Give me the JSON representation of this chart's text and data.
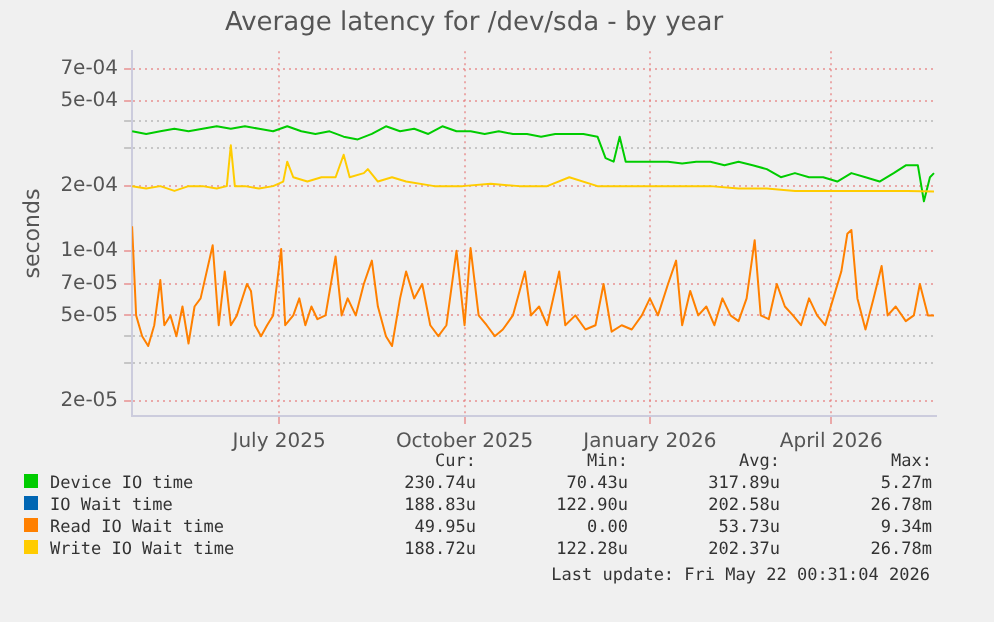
{
  "chart_data": {
    "type": "line",
    "title": "Average latency for /dev/sda - by year",
    "ylabel": "seconds",
    "log": "y",
    "grid": true,
    "legend": "bottom",
    "marker": "none",
    "line_style": "solid",
    "xlim": [
      "2025-04-19",
      "2026-05-23"
    ],
    "xticks": [
      {
        "value": "2025-07-01",
        "label": "July 2025"
      },
      {
        "value": "2025-10-01",
        "label": "October 2025"
      },
      {
        "value": "2026-01-01",
        "label": "January 2026"
      },
      {
        "value": "2026-04-01",
        "label": "April 2026"
      }
    ],
    "ylim": [
      1.7e-05,
      0.00085
    ],
    "yticks": [
      {
        "value": 2e-05,
        "label": "2e-05"
      },
      {
        "value": 3e-05,
        "label": null
      },
      {
        "value": 4e-05,
        "label": null
      },
      {
        "value": 5e-05,
        "label": "5e-05"
      },
      {
        "value": 7e-05,
        "label": "7e-05"
      },
      {
        "value": 0.0001,
        "label": "1e-04"
      },
      {
        "value": 0.0002,
        "label": "2e-04"
      },
      {
        "value": 0.0003,
        "label": null
      },
      {
        "value": 0.0004,
        "label": null
      },
      {
        "value": 0.0005,
        "label": "5e-04"
      },
      {
        "value": 0.0007,
        "label": "7e-04"
      }
    ],
    "annotations": [
      "Cur:",
      "Min:",
      "Avg:",
      "Max:",
      "230.74u",
      "70.43u",
      "317.89u",
      "5.27m",
      "188.83u",
      "122.90u",
      "202.58u",
      "26.78m",
      "49.95u",
      "0.00",
      "53.73u",
      "9.34m",
      "188.72u",
      "122.28u",
      "202.37u",
      "26.78m",
      "Last update: Fri May 22 00:31:04 2026"
    ],
    "series": [
      {
        "name": "Device IO time",
        "color": "#00cc00",
        "x": [
          "2025-04-19",
          "2025-04-26",
          "2025-05-03",
          "2025-05-10",
          "2025-05-17",
          "2025-05-24",
          "2025-05-31",
          "2025-06-07",
          "2025-06-14",
          "2025-06-21",
          "2025-06-28",
          "2025-07-05",
          "2025-07-12",
          "2025-07-19",
          "2025-07-26",
          "2025-08-02",
          "2025-08-09",
          "2025-08-16",
          "2025-08-23",
          "2025-08-30",
          "2025-09-06",
          "2025-09-13",
          "2025-09-20",
          "2025-09-27",
          "2025-10-04",
          "2025-10-11",
          "2025-10-18",
          "2025-10-25",
          "2025-11-01",
          "2025-11-08",
          "2025-11-15",
          "2025-11-22",
          "2025-11-29",
          "2025-12-06",
          "2025-12-10",
          "2025-12-14",
          "2025-12-17",
          "2025-12-20",
          "2025-12-27",
          "2026-01-03",
          "2026-01-10",
          "2026-01-17",
          "2026-01-24",
          "2026-01-31",
          "2026-02-07",
          "2026-02-14",
          "2026-02-21",
          "2026-02-28",
          "2026-03-07",
          "2026-03-14",
          "2026-03-21",
          "2026-03-28",
          "2026-04-04",
          "2026-04-11",
          "2026-04-18",
          "2026-04-25",
          "2026-05-02",
          "2026-05-08",
          "2026-05-14",
          "2026-05-17",
          "2026-05-20",
          "2026-05-22"
        ],
        "values": [
          0.00036,
          0.00035,
          0.00036,
          0.00037,
          0.00036,
          0.00037,
          0.00038,
          0.00037,
          0.00038,
          0.00037,
          0.00036,
          0.00038,
          0.00036,
          0.00035,
          0.00036,
          0.00034,
          0.00033,
          0.00035,
          0.00038,
          0.00036,
          0.00037,
          0.00035,
          0.00038,
          0.00036,
          0.00036,
          0.00035,
          0.00036,
          0.00035,
          0.00035,
          0.00034,
          0.00035,
          0.00035,
          0.00035,
          0.00034,
          0.00027,
          0.00026,
          0.00034,
          0.00026,
          0.00026,
          0.00026,
          0.00026,
          0.000255,
          0.00026,
          0.00026,
          0.00025,
          0.00026,
          0.00025,
          0.00024,
          0.00022,
          0.00023,
          0.00022,
          0.00022,
          0.00021,
          0.00023,
          0.00022,
          0.00021,
          0.00023,
          0.00025,
          0.00025,
          0.00017,
          0.00022,
          0.00023
        ]
      },
      {
        "name": "IO Wait time",
        "color": "#0066b3"
      },
      {
        "name": "Read IO Wait time",
        "color": "#ff8000",
        "x": [
          "2025-04-19",
          "2025-04-21",
          "2025-04-24",
          "2025-04-27",
          "2025-04-30",
          "2025-05-03",
          "2025-05-05",
          "2025-05-08",
          "2025-05-11",
          "2025-05-14",
          "2025-05-17",
          "2025-05-20",
          "2025-05-23",
          "2025-05-29",
          "2025-06-01",
          "2025-06-04",
          "2025-06-07",
          "2025-06-10",
          "2025-06-15",
          "2025-06-17",
          "2025-06-19",
          "2025-06-22",
          "2025-06-25",
          "2025-06-28",
          "2025-07-02",
          "2025-07-04",
          "2025-07-08",
          "2025-07-11",
          "2025-07-14",
          "2025-07-17",
          "2025-07-20",
          "2025-07-24",
          "2025-07-29",
          "2025-08-01",
          "2025-08-04",
          "2025-08-08",
          "2025-08-12",
          "2025-08-16",
          "2025-08-19",
          "2025-08-23",
          "2025-08-26",
          "2025-08-30",
          "2025-09-02",
          "2025-09-06",
          "2025-09-10",
          "2025-09-14",
          "2025-09-18",
          "2025-09-22",
          "2025-09-27",
          "2025-10-01",
          "2025-10-04",
          "2025-10-08",
          "2025-10-12",
          "2025-10-16",
          "2025-10-20",
          "2025-10-25",
          "2025-10-31",
          "2025-11-03",
          "2025-11-07",
          "2025-11-11",
          "2025-11-17",
          "2025-11-20",
          "2025-11-25",
          "2025-11-30",
          "2025-12-05",
          "2025-12-09",
          "2025-12-13",
          "2025-12-18",
          "2025-12-23",
          "2025-12-28",
          "2026-01-01",
          "2026-01-05",
          "2026-01-10",
          "2026-01-14",
          "2026-01-17",
          "2026-01-21",
          "2026-01-25",
          "2026-01-29",
          "2026-02-02",
          "2026-02-06",
          "2026-02-10",
          "2026-02-14",
          "2026-02-18",
          "2026-02-22",
          "2026-02-25",
          "2026-03-01",
          "2026-03-05",
          "2026-03-09",
          "2026-03-13",
          "2026-03-17",
          "2026-03-21",
          "2026-03-25",
          "2026-03-29",
          "2026-04-02",
          "2026-04-06",
          "2026-04-09",
          "2026-04-11",
          "2026-04-14",
          "2026-04-18",
          "2026-04-22",
          "2026-04-26",
          "2026-04-29",
          "2026-05-03",
          "2026-05-08",
          "2026-05-12",
          "2026-05-15",
          "2026-05-19",
          "2026-05-22"
        ],
        "values": [
          0.00013,
          5e-05,
          4e-05,
          3.6e-05,
          4.5e-05,
          7.3e-05,
          4.5e-05,
          5e-05,
          4e-05,
          5.5e-05,
          3.7e-05,
          5.5e-05,
          6e-05,
          0.000106,
          4.5e-05,
          8e-05,
          4.5e-05,
          5e-05,
          7e-05,
          6.5e-05,
          4.5e-05,
          4e-05,
          4.5e-05,
          5e-05,
          0.000102,
          4.5e-05,
          5e-05,
          6e-05,
          4.5e-05,
          5.5e-05,
          4.8e-05,
          5e-05,
          9.4e-05,
          5e-05,
          6e-05,
          5e-05,
          7e-05,
          9e-05,
          5.5e-05,
          4e-05,
          3.6e-05,
          6e-05,
          8e-05,
          6e-05,
          7e-05,
          4.5e-05,
          4e-05,
          4.5e-05,
          0.0001,
          4.5e-05,
          0.000103,
          5e-05,
          4.5e-05,
          4e-05,
          4.3e-05,
          5e-05,
          8e-05,
          5e-05,
          5.5e-05,
          4.5e-05,
          8e-05,
          4.5e-05,
          5e-05,
          4.3e-05,
          4.5e-05,
          7e-05,
          4.2e-05,
          4.5e-05,
          4.3e-05,
          5e-05,
          6e-05,
          5e-05,
          7e-05,
          9e-05,
          4.5e-05,
          6.5e-05,
          5e-05,
          5.5e-05,
          4.5e-05,
          6e-05,
          5e-05,
          4.7e-05,
          6e-05,
          0.000112,
          5e-05,
          4.8e-05,
          7e-05,
          5.5e-05,
          5e-05,
          4.5e-05,
          6e-05,
          5e-05,
          4.5e-05,
          6e-05,
          8e-05,
          0.00012,
          0.000125,
          6e-05,
          4.3e-05,
          6e-05,
          8.5e-05,
          5e-05,
          5.5e-05,
          4.7e-05,
          5e-05,
          7e-05,
          5e-05,
          5e-05
        ]
      },
      {
        "name": "Write IO Wait time",
        "color": "#ffcc00",
        "x": [
          "2025-04-19",
          "2025-04-26",
          "2025-05-03",
          "2025-05-10",
          "2025-05-17",
          "2025-05-24",
          "2025-05-31",
          "2025-06-05",
          "2025-06-07",
          "2025-06-09",
          "2025-06-14",
          "2025-06-21",
          "2025-06-28",
          "2025-07-03",
          "2025-07-05",
          "2025-07-08",
          "2025-07-15",
          "2025-07-22",
          "2025-07-29",
          "2025-08-02",
          "2025-08-05",
          "2025-08-12",
          "2025-08-14",
          "2025-08-19",
          "2025-08-26",
          "2025-09-02",
          "2025-09-16",
          "2025-09-30",
          "2025-10-14",
          "2025-10-28",
          "2025-11-11",
          "2025-11-22",
          "2025-12-06",
          "2025-12-20",
          "2026-01-03",
          "2026-01-17",
          "2026-01-31",
          "2026-02-14",
          "2026-02-28",
          "2026-03-14",
          "2026-03-28",
          "2026-04-11",
          "2026-04-25",
          "2026-05-09",
          "2026-05-22"
        ],
        "values": [
          0.0002,
          0.000195,
          0.0002,
          0.00019,
          0.0002,
          0.0002,
          0.000195,
          0.0002,
          0.00031,
          0.0002,
          0.0002,
          0.000195,
          0.0002,
          0.00021,
          0.00026,
          0.00022,
          0.00021,
          0.00022,
          0.00022,
          0.00028,
          0.00022,
          0.00023,
          0.00024,
          0.00021,
          0.00022,
          0.00021,
          0.0002,
          0.0002,
          0.000205,
          0.0002,
          0.0002,
          0.00022,
          0.0002,
          0.0002,
          0.0002,
          0.0002,
          0.0002,
          0.000195,
          0.000195,
          0.00019,
          0.00019,
          0.00019,
          0.00019,
          0.00019,
          0.000189
        ]
      }
    ]
  }
}
